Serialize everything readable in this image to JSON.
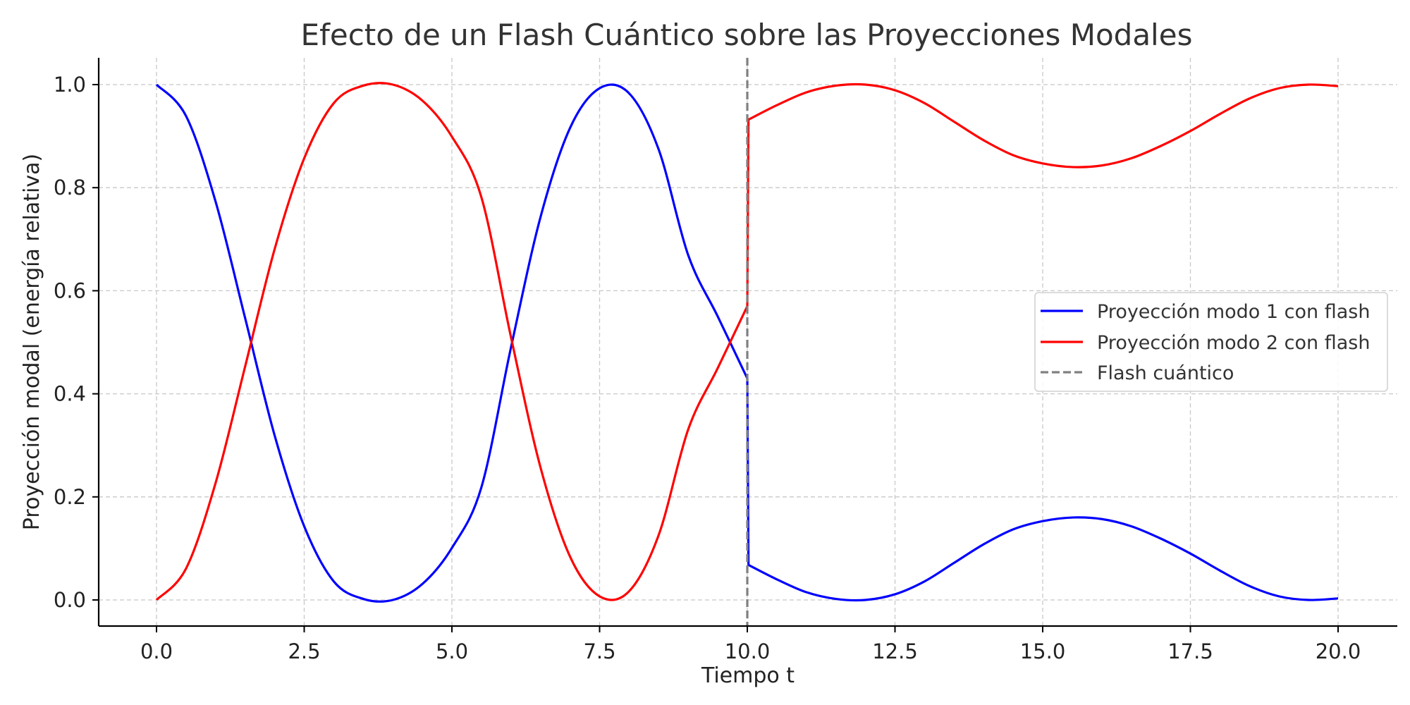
{
  "chart_data": {
    "type": "line",
    "title": "Efecto de un Flash Cuántico sobre las Proyecciones Modales",
    "xlabel": "Tiempo t",
    "ylabel": "Proyección modal (energía relativa)",
    "xlim": [
      -1.0,
      21.0
    ],
    "ylim": [
      -0.05,
      1.05
    ],
    "xticks": [
      0.0,
      2.5,
      5.0,
      7.5,
      10.0,
      12.5,
      15.0,
      17.5,
      20.0
    ],
    "xtick_labels": [
      "0.0",
      "2.5",
      "5.0",
      "7.5",
      "10.0",
      "12.5",
      "15.0",
      "17.5",
      "20.0"
    ],
    "yticks": [
      0.0,
      0.2,
      0.4,
      0.6,
      0.8,
      1.0
    ],
    "ytick_labels": [
      "0.0",
      "0.2",
      "0.4",
      "0.6",
      "0.8",
      "1.0"
    ],
    "grid": true,
    "legend_position": "center-right",
    "flash_time": 10.0,
    "x": [
      0,
      0.5,
      1,
      1.5,
      2,
      2.5,
      3,
      3.5,
      4,
      4.5,
      5,
      5.5,
      6,
      6.5,
      7,
      7.5,
      8,
      8.5,
      9,
      9.5,
      10,
      10.02,
      10.5,
      11,
      11.5,
      12,
      12.5,
      13,
      13.5,
      14,
      14.5,
      15,
      15.5,
      16,
      16.5,
      17,
      17.5,
      18,
      18.5,
      19,
      19.5,
      20
    ],
    "series": [
      {
        "name": "Proyección modo 1 con flash",
        "color": "#0000ff",
        "style": "solid",
        "values": [
          1.0,
          0.939,
          0.773,
          0.547,
          0.319,
          0.143,
          0.036,
          0.002,
          0.0,
          0.031,
          0.101,
          0.219,
          0.49,
          0.743,
          0.916,
          0.993,
          0.983,
          0.874,
          0.669,
          0.55,
          0.43,
          0.068,
          0.04,
          0.015,
          0.002,
          0.0,
          0.011,
          0.036,
          0.072,
          0.108,
          0.137,
          0.153,
          0.16,
          0.157,
          0.143,
          0.119,
          0.09,
          0.057,
          0.027,
          0.007,
          0.0,
          0.003
        ]
      },
      {
        "name": "Proyección modo 2 con flash",
        "color": "#ff0000",
        "style": "solid",
        "values": [
          0.0,
          0.061,
          0.227,
          0.453,
          0.681,
          0.857,
          0.964,
          0.998,
          1.0,
          0.969,
          0.899,
          0.781,
          0.51,
          0.257,
          0.084,
          0.007,
          0.017,
          0.126,
          0.331,
          0.45,
          0.57,
          0.932,
          0.96,
          0.985,
          0.998,
          1.0,
          0.989,
          0.964,
          0.928,
          0.892,
          0.863,
          0.847,
          0.84,
          0.843,
          0.857,
          0.881,
          0.91,
          0.943,
          0.973,
          0.993,
          1.0,
          0.997
        ]
      },
      {
        "name": "Flash cuántico",
        "color": "#808080",
        "style": "dashed"
      }
    ]
  }
}
